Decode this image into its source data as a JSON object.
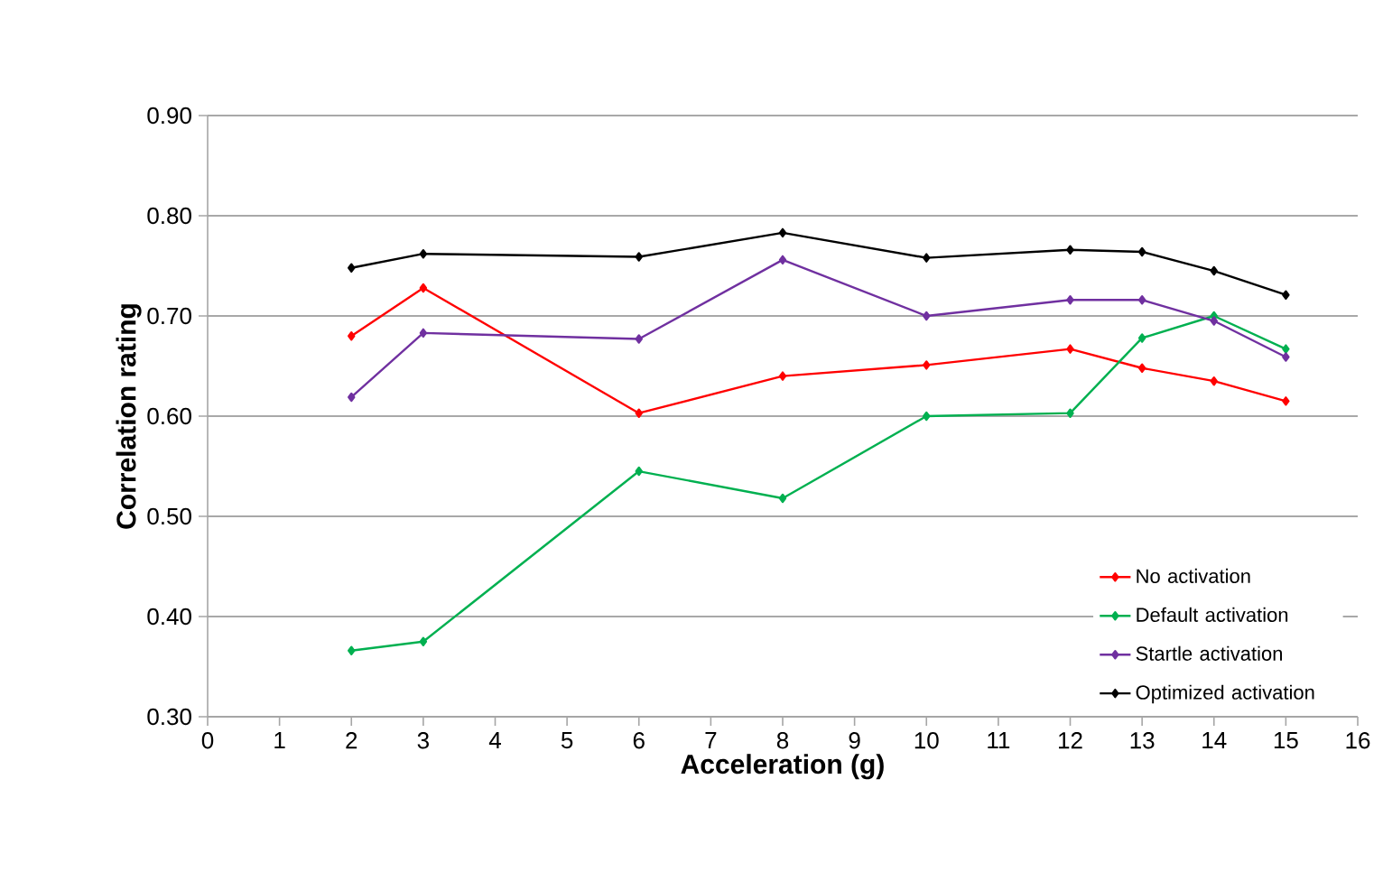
{
  "chart_data": {
    "type": "line",
    "xlabel": "Acceleration (g)",
    "ylabel": "Correlation rating",
    "x": [
      2,
      3,
      6,
      8,
      10,
      12,
      13,
      14,
      15
    ],
    "series": [
      {
        "name": "No activation",
        "color": "#ff0000",
        "values": [
          0.68,
          0.728,
          0.603,
          0.64,
          0.651,
          0.667,
          0.648,
          0.635,
          0.615
        ]
      },
      {
        "name": "Default activation",
        "color": "#00b050",
        "values": [
          0.366,
          0.375,
          0.545,
          0.518,
          0.6,
          0.603,
          0.678,
          0.7,
          0.667
        ]
      },
      {
        "name": "Startle activation",
        "color": "#7030a0",
        "values": [
          0.619,
          0.683,
          0.677,
          0.756,
          0.7,
          0.716,
          0.716,
          0.695,
          0.659
        ]
      },
      {
        "name": "Optimized activation",
        "color": "#000000",
        "values": [
          0.748,
          0.762,
          0.759,
          0.783,
          0.758,
          0.766,
          0.764,
          0.745,
          0.721
        ]
      }
    ],
    "xlim": [
      0,
      16
    ],
    "xticks": [
      0,
      1,
      2,
      3,
      4,
      5,
      6,
      7,
      8,
      9,
      10,
      11,
      12,
      13,
      14,
      15,
      16
    ],
    "ylim": [
      0.3,
      0.9
    ],
    "yticks": [
      {
        "value": 0.3,
        "label": "0.30"
      },
      {
        "value": 0.4,
        "label": "0.40"
      },
      {
        "value": 0.5,
        "label": "0.50"
      },
      {
        "value": 0.6,
        "label": "0.60"
      },
      {
        "value": 0.7,
        "label": "0.70"
      },
      {
        "value": 0.8,
        "label": "0.80"
      },
      {
        "value": 0.9,
        "label": "0.90"
      }
    ],
    "grid": "y",
    "legend": "bottom right",
    "marker": "diamond",
    "line_style": "solid"
  }
}
